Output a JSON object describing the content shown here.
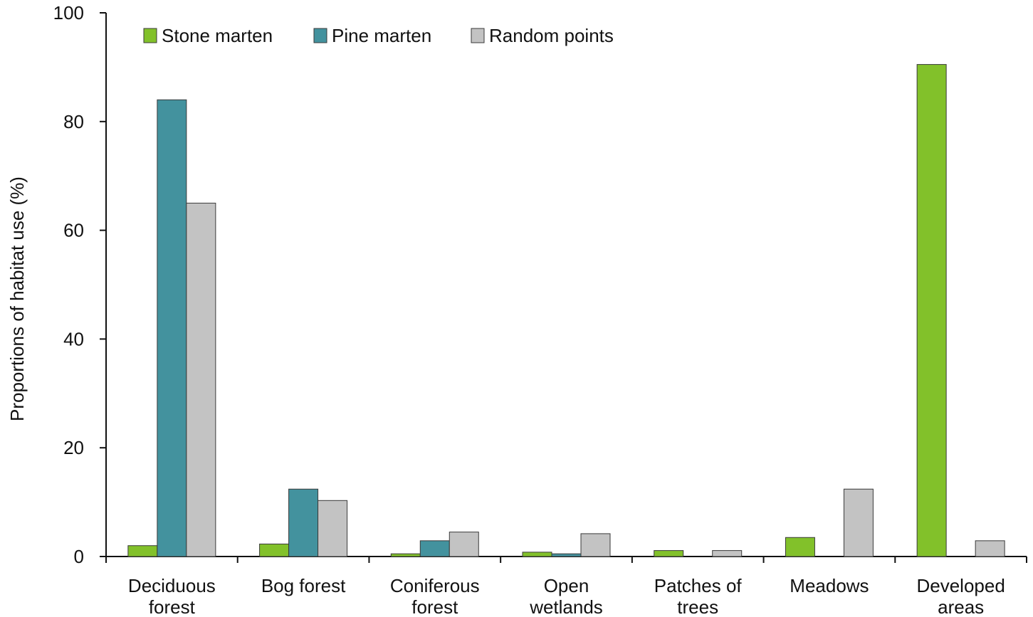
{
  "chart_data": {
    "type": "bar",
    "title": "",
    "xlabel": "",
    "ylabel": "Proportions of habitat use (%)",
    "ylim": [
      0,
      100
    ],
    "yticks": [
      0,
      20,
      40,
      60,
      80,
      100
    ],
    "grid": false,
    "legend_position": "top-left",
    "categories": [
      [
        "Deciduous",
        "forest"
      ],
      [
        "Bog forest"
      ],
      [
        "Coniferous",
        "forest"
      ],
      [
        "Open",
        "wetlands"
      ],
      [
        "Patches of",
        "trees"
      ],
      [
        "Meadows"
      ],
      [
        "Developed",
        "areas"
      ]
    ],
    "series": [
      {
        "name": "Stone marten",
        "color": "#82c12a",
        "values": [
          2.0,
          2.3,
          0.5,
          0.8,
          1.1,
          3.5,
          90.5
        ]
      },
      {
        "name": "Pine marten",
        "color": "#43929e",
        "values": [
          84.0,
          12.4,
          2.9,
          0.5,
          0.0,
          0.0,
          0.0
        ]
      },
      {
        "name": "Random points",
        "color": "#c3c3c3",
        "values": [
          65.0,
          10.3,
          4.5,
          4.2,
          1.1,
          12.4,
          2.9
        ]
      }
    ]
  }
}
